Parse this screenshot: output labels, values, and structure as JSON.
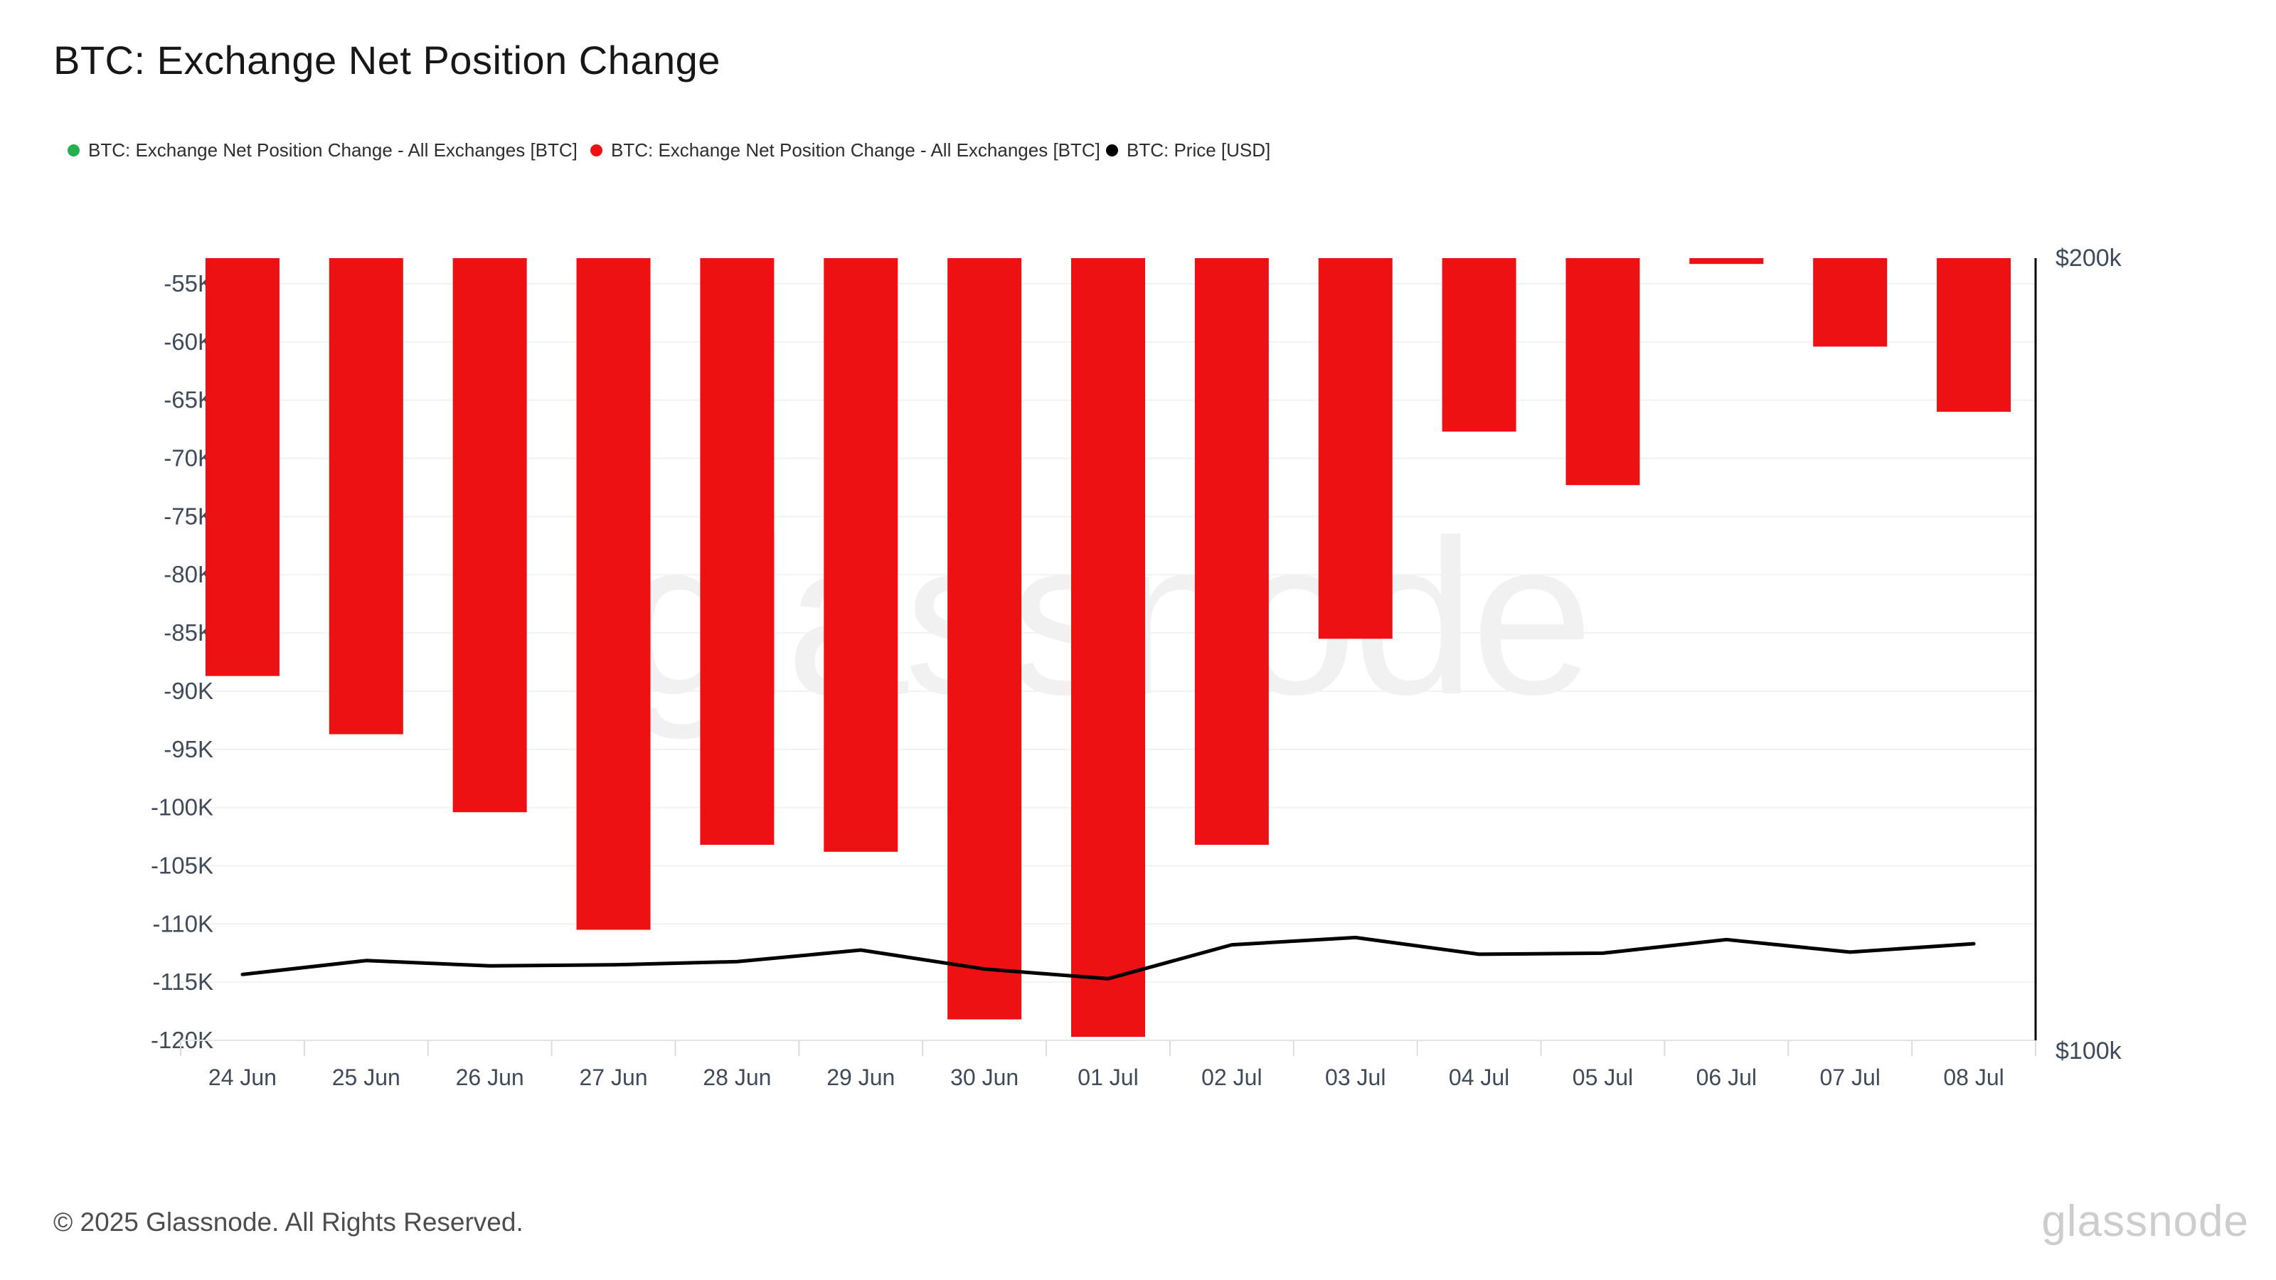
{
  "header": {
    "title": "BTC: Exchange Net Position Change"
  },
  "legend": {
    "items": [
      {
        "label": "BTC: Exchange Net Position Change - All Exchanges [BTC]",
        "color": "#22b14c"
      },
      {
        "label": "BTC: Exchange Net Position Change - All Exchanges [BTC]",
        "color": "#ed1113"
      },
      {
        "label": "BTC: Price [USD]",
        "color": "#000000"
      }
    ]
  },
  "chart_data": {
    "type": "bar",
    "categories": [
      "24 Jun",
      "25 Jun",
      "26 Jun",
      "27 Jun",
      "28 Jun",
      "29 Jun",
      "30 Jun",
      "01 Jul",
      "02 Jul",
      "03 Jul",
      "04 Jul",
      "05 Jul",
      "06 Jul",
      "07 Jul",
      "08 Jul"
    ],
    "series": [
      {
        "name": "BTC: Exchange Net Position Change - All Exchanges [BTC]",
        "type": "bar",
        "color": "#ed1113",
        "unit": "BTC",
        "values": [
          -88700,
          -93700,
          -100400,
          -110500,
          -103200,
          -103800,
          -118200,
          -119700,
          -103200,
          -85500,
          -67700,
          -72300,
          -53300,
          -60400,
          -66000
        ]
      },
      {
        "name": "BTC: Price [USD]",
        "type": "line",
        "color": "#000000",
        "unit": "USD",
        "values": [
          107100,
          108400,
          107900,
          108000,
          108300,
          109400,
          107600,
          106700,
          109900,
          110600,
          109000,
          109100,
          110400,
          109200,
          110000
        ]
      }
    ],
    "title": "BTC: Exchange Net Position Change",
    "xlabel": "",
    "ylabel": "",
    "left_axis": {
      "tick_labels": [
        "-55K",
        "-60K",
        "-65K",
        "-70K",
        "-75K",
        "-80K",
        "-85K",
        "-90K",
        "-95K",
        "-100K",
        "-105K",
        "-110K",
        "-115K",
        "-120K"
      ],
      "tick_values": [
        -55000,
        -60000,
        -65000,
        -70000,
        -75000,
        -80000,
        -85000,
        -90000,
        -95000,
        -100000,
        -105000,
        -110000,
        -115000,
        -120000
      ],
      "ylim": [
        -120000,
        -52800
      ],
      "grid": true
    },
    "right_axis": {
      "top_label": "$200k",
      "bottom_label": "$100k",
      "ylim": [
        100000,
        200000
      ],
      "scale": "log"
    },
    "legend_position": "top",
    "watermark": "glassnode"
  },
  "footer": {
    "copyright": "© 2025 Glassnode. All Rights Reserved.",
    "brand": "glassnode"
  }
}
